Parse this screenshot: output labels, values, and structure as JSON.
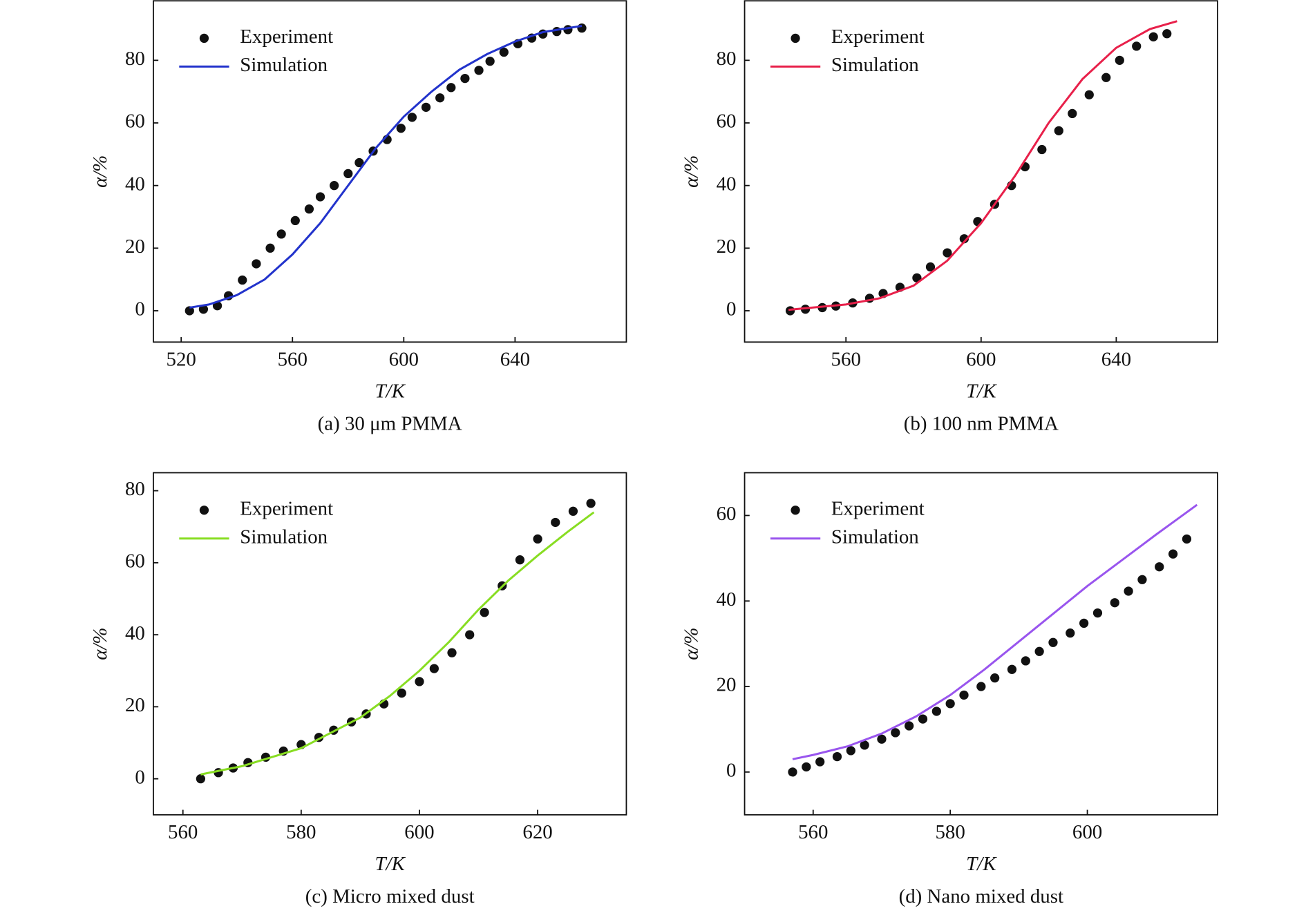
{
  "chart_data": [
    {
      "type": "line",
      "caption": "(a) 30 μm PMMA",
      "xlabel": "T/K",
      "ylabel": "α/%",
      "xlim": [
        510,
        680
      ],
      "xticks": [
        520,
        560,
        600,
        640
      ],
      "ylim": [
        -10,
        99
      ],
      "yticks": [
        0,
        20,
        40,
        60,
        80
      ],
      "series": [
        {
          "name": "Experiment",
          "style": "markers",
          "color": "#111111",
          "x": [
            523,
            528,
            533,
            537,
            542,
            547,
            552,
            556,
            561,
            566,
            570,
            575,
            580,
            584,
            589,
            594,
            599,
            603,
            608,
            613,
            617,
            622,
            627,
            631,
            636,
            641,
            646,
            650,
            655,
            659,
            664
          ],
          "values": [
            0,
            0.5,
            1.6,
            4.8,
            9.8,
            15,
            20,
            24.5,
            28.8,
            32.5,
            36.4,
            40,
            43.8,
            47.3,
            51,
            54.7,
            58.3,
            61.8,
            65,
            68,
            71.3,
            74.2,
            76.8,
            79.7,
            82.6,
            85.3,
            87.1,
            88.4,
            89.2,
            89.8,
            90.3
          ]
        },
        {
          "name": "Simulation",
          "style": "line",
          "color": "#2233cc",
          "x": [
            523,
            530,
            540,
            550,
            560,
            570,
            580,
            590,
            600,
            610,
            620,
            630,
            640,
            650,
            664
          ],
          "values": [
            1,
            2,
            5,
            10,
            18,
            28,
            40,
            52,
            62,
            70,
            77,
            82,
            86,
            89,
            91
          ]
        }
      ]
    },
    {
      "type": "line",
      "caption": "(b) 100 nm PMMA",
      "xlabel": "T/K",
      "ylabel": "α/%",
      "xlim": [
        530,
        670
      ],
      "xticks": [
        560,
        600,
        640
      ],
      "ylim": [
        -10,
        99
      ],
      "yticks": [
        0,
        20,
        40,
        60,
        80
      ],
      "series": [
        {
          "name": "Experiment",
          "style": "markers",
          "color": "#111111",
          "x": [
            543.5,
            548,
            553,
            557,
            562,
            567,
            571,
            576,
            581,
            585,
            590,
            595,
            599,
            604,
            609,
            613,
            618,
            623,
            627,
            632,
            637,
            641,
            646,
            651,
            655
          ],
          "values": [
            0,
            0.5,
            1,
            1.5,
            2.5,
            4,
            5.5,
            7.5,
            10.5,
            14,
            18.5,
            23,
            28.5,
            34,
            40,
            46,
            51.5,
            57.5,
            63,
            69,
            74.5,
            80,
            84.5,
            87.5,
            88.5
          ]
        },
        {
          "name": "Simulation",
          "style": "line",
          "color": "#e8204a",
          "x": [
            543,
            550,
            560,
            570,
            580,
            590,
            600,
            610,
            620,
            630,
            640,
            650,
            658
          ],
          "values": [
            0.3,
            1,
            2,
            4,
            8,
            16,
            28,
            43,
            60,
            74,
            84,
            90,
            92.5
          ]
        }
      ]
    },
    {
      "type": "line",
      "caption": "(c) Micro mixed dust",
      "xlabel": "T/K",
      "ylabel": "α/%",
      "xlim": [
        555,
        635
      ],
      "xticks": [
        560,
        580,
        600,
        620
      ],
      "ylim": [
        -10,
        85
      ],
      "yticks": [
        0,
        20,
        40,
        60,
        80
      ],
      "series": [
        {
          "name": "Experiment",
          "style": "markers",
          "color": "#111111",
          "x": [
            563,
            566,
            568.5,
            571,
            574,
            577,
            580,
            583,
            585.5,
            588.5,
            591,
            594,
            597,
            600,
            602.5,
            605.5,
            608.5,
            611,
            614,
            617,
            620,
            623,
            626,
            629
          ],
          "values": [
            0,
            1.7,
            3,
            4.5,
            6,
            7.7,
            9.5,
            11.5,
            13.5,
            15.8,
            18,
            20.8,
            23.8,
            27,
            30.6,
            35,
            40,
            46.2,
            53.6,
            60.8,
            66.6,
            71.2,
            74.3,
            76.5
          ]
        },
        {
          "name": "Simulation",
          "style": "line",
          "color": "#88dd22",
          "x": [
            563,
            570,
            580,
            590,
            595,
            600,
            605,
            610,
            615,
            620,
            625,
            629.5
          ],
          "values": [
            1.2,
            3.5,
            8.5,
            17,
            23,
            30,
            38,
            47,
            55,
            62,
            68.5,
            74
          ]
        }
      ]
    },
    {
      "type": "line",
      "caption": "(d) Nano mixed dust",
      "xlabel": "T/K",
      "ylabel": "α/%",
      "xlim": [
        550,
        619
      ],
      "xticks": [
        560,
        580,
        600
      ],
      "ylim": [
        -10,
        70
      ],
      "yticks": [
        0,
        20,
        40,
        60
      ],
      "series": [
        {
          "name": "Experiment",
          "style": "markers",
          "color": "#111111",
          "x": [
            557,
            559,
            561,
            563.5,
            565.5,
            567.5,
            570,
            572,
            574,
            576,
            578,
            580,
            582,
            584.5,
            586.5,
            589,
            591,
            593,
            595,
            597.5,
            599.5,
            601.5,
            604,
            606,
            608,
            610.5,
            612.5,
            614.5
          ],
          "values": [
            0,
            1.2,
            2.4,
            3.6,
            5,
            6.3,
            7.7,
            9.2,
            10.8,
            12.4,
            14.2,
            16,
            18,
            20,
            22,
            24,
            26,
            28.2,
            30.3,
            32.5,
            34.8,
            37.2,
            39.6,
            42.3,
            45,
            48,
            51,
            54.5
          ]
        },
        {
          "name": "Simulation",
          "style": "line",
          "color": "#9955ee",
          "x": [
            557,
            560,
            565,
            570,
            575,
            580,
            585,
            590,
            595,
            600,
            605,
            610,
            616
          ],
          "values": [
            3,
            4,
            6,
            9,
            13,
            18,
            24,
            30.5,
            37,
            43.5,
            49.5,
            55.5,
            62.5
          ]
        }
      ]
    }
  ]
}
